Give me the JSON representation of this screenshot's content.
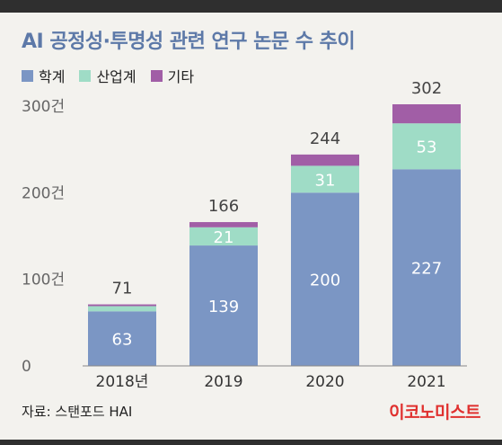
{
  "header": {
    "title": "AI 공정성·투명성 관련 연구 논문 수 추이"
  },
  "footer": {
    "source": "자료: 스탠포드 HAI",
    "brand": "이코노미스트"
  },
  "colors": {
    "academia": "#7b96c4",
    "industry": "#9fdcc6",
    "other": "#a15ea6",
    "title": "#5d79a8",
    "background": "#f3f2ee"
  },
  "chart_data": {
    "type": "bar",
    "stacked": true,
    "title": "AI 공정성·투명성 관련 연구 논문 수 추이",
    "categories": [
      "2018년",
      "2019",
      "2020",
      "2021"
    ],
    "series": [
      {
        "name": "학계",
        "values": [
          63,
          139,
          200,
          227
        ],
        "labels": [
          "63",
          "139",
          "200",
          "227"
        ]
      },
      {
        "name": "산업계",
        "values": [
          6,
          21,
          31,
          53
        ],
        "labels": [
          "",
          "21",
          "31",
          "53"
        ]
      },
      {
        "name": "기타",
        "values": [
          2,
          6,
          13,
          22
        ],
        "labels": [
          "",
          "",
          "",
          ""
        ]
      }
    ],
    "totals": [
      "71",
      "166",
      "244",
      "302"
    ],
    "total_values": [
      71,
      166,
      244,
      302
    ],
    "yticks": [
      {
        "value": 0,
        "label": "0"
      },
      {
        "value": 100,
        "label": "100건"
      },
      {
        "value": 200,
        "label": "200건"
      },
      {
        "value": 300,
        "label": "300건"
      }
    ],
    "ylim": [
      0,
      302
    ],
    "grid": false,
    "legend_position": "top-left"
  }
}
